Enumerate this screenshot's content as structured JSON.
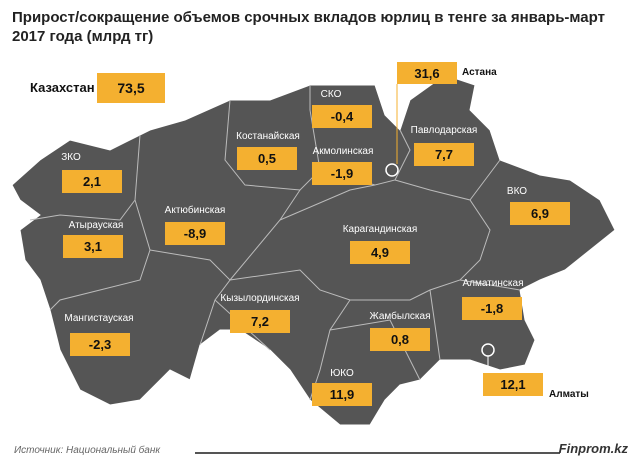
{
  "title": "Прирост/сокращение объемов срочных вкладов юрлиц в тенге за январь-март 2017 года (млрд тг)",
  "total": {
    "label": "Казахстан",
    "value": "73,5"
  },
  "regions": [
    {
      "name": "СКО",
      "value": "-0,4"
    },
    {
      "name": "Костанайская",
      "value": "0,5"
    },
    {
      "name": "Акмолинская",
      "value": "-1,9"
    },
    {
      "name": "Павлодарская",
      "value": "7,7"
    },
    {
      "name": "ЗКО",
      "value": "2,1"
    },
    {
      "name": "ВКО",
      "value": "6,9"
    },
    {
      "name": "Атырауская",
      "value": "3,1"
    },
    {
      "name": "Актюбинская",
      "value": "-8,9"
    },
    {
      "name": "Карагандинская",
      "value": "4,9"
    },
    {
      "name": "Алматинская",
      "value": "-1,8"
    },
    {
      "name": "Кызылординская",
      "value": "7,2"
    },
    {
      "name": "Мангистауская",
      "value": "-2,3"
    },
    {
      "name": "Жамбылская",
      "value": "0,8"
    },
    {
      "name": "ЮКО",
      "value": "11,9"
    }
  ],
  "cities": [
    {
      "name": "Астана",
      "value": "31,6"
    },
    {
      "name": "Алматы",
      "value": "12,1"
    }
  ],
  "footer": {
    "source": "Источник:  Национальный банк",
    "brand": "Finprom.kz"
  },
  "colors": {
    "map": "#555555",
    "box": "#F4B030"
  }
}
